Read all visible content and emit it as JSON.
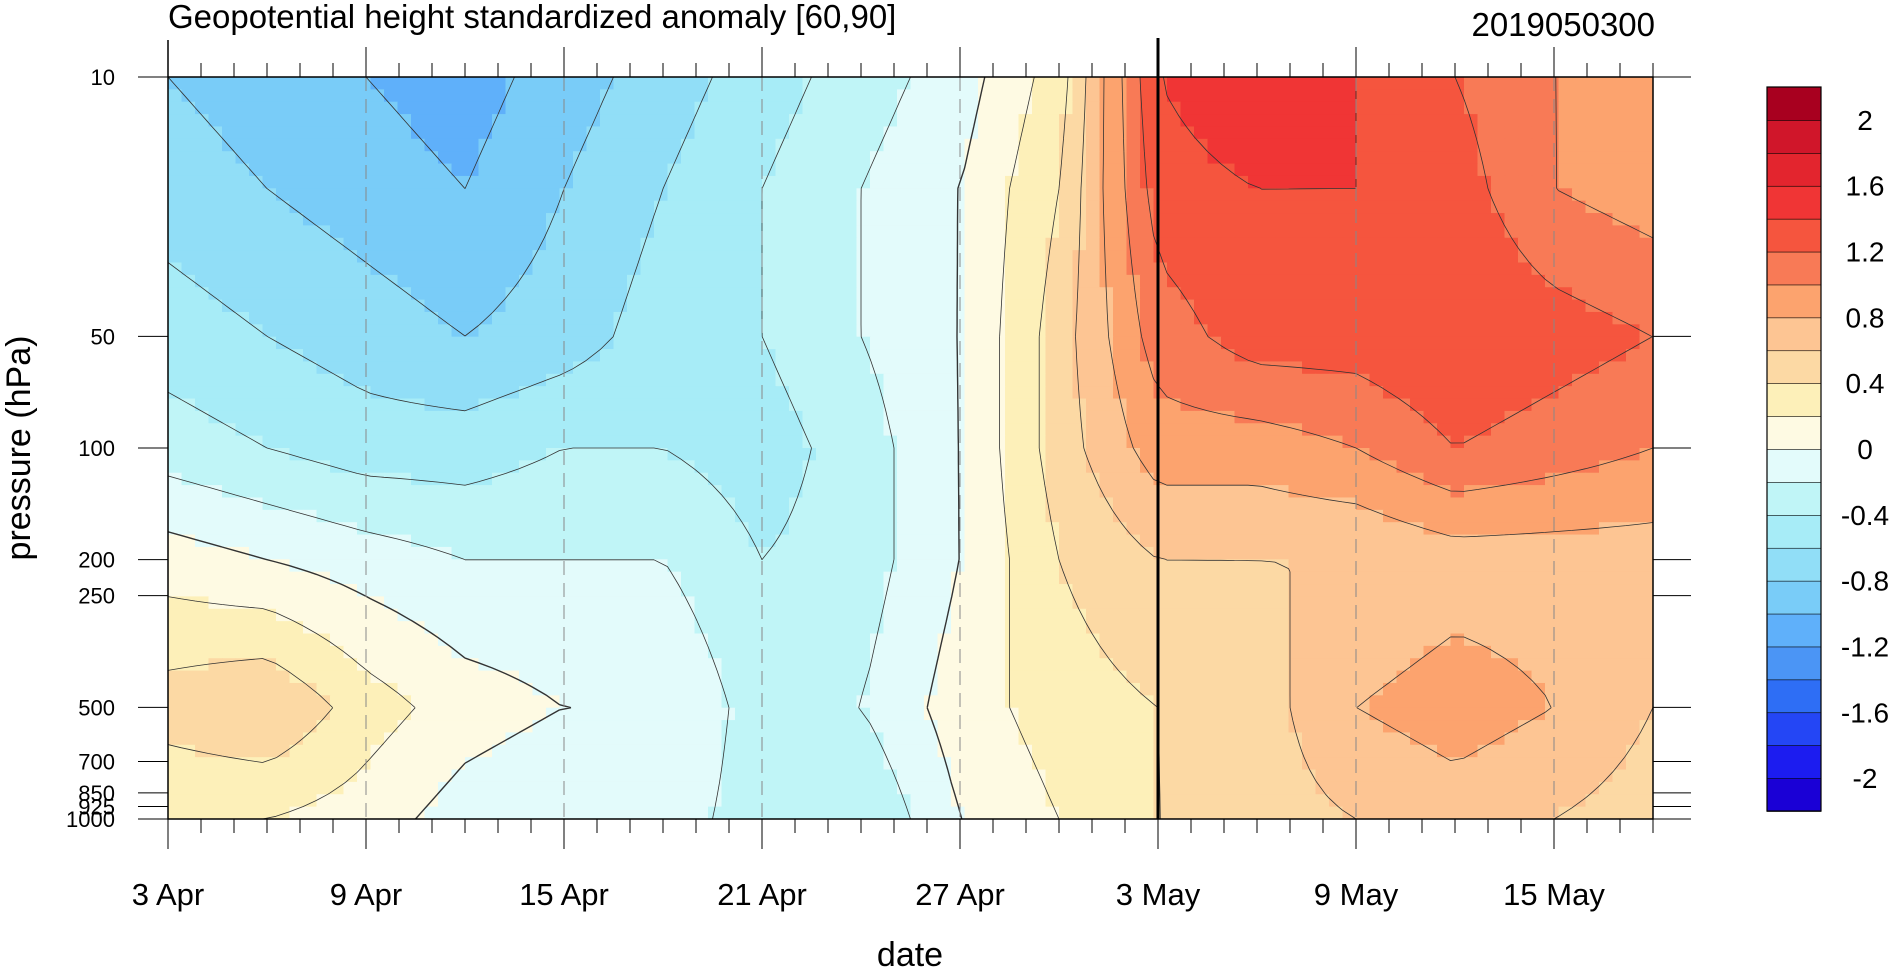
{
  "chart_data": {
    "type": "heatmap",
    "title": "Geopotential height standardized anomaly [60,90]",
    "date_label": "2019050300",
    "xlabel": "date",
    "ylabel": "pressure (hPa)",
    "x_tick_labels": [
      "3 Apr",
      "9 Apr",
      "15 Apr",
      "21 Apr",
      "27 Apr",
      "3 May",
      "9 May",
      "15 May"
    ],
    "x_range_days": [
      0,
      45
    ],
    "y_ticks": [
      {
        "value": 10,
        "label": "10"
      },
      {
        "value": 50,
        "label": "50"
      },
      {
        "value": 100,
        "label": "100"
      },
      {
        "value": 200,
        "label": "200"
      },
      {
        "value": 250,
        "label": "250"
      },
      {
        "value": 500,
        "label": "500"
      },
      {
        "value": 700,
        "label": "700"
      },
      {
        "value": 850,
        "label": "850"
      },
      {
        "value": 925,
        "label": "925"
      },
      {
        "value": 1000,
        "label": "1000"
      }
    ],
    "y_scale": "log",
    "y_reversed": true,
    "analysis_day": 30,
    "levels": [
      -2.2,
      -2.0,
      -1.8,
      -1.6,
      -1.4,
      -1.2,
      -1.0,
      -0.8,
      -0.6,
      -0.4,
      -0.2,
      0,
      0.2,
      0.4,
      0.6,
      0.8,
      1.0,
      1.2,
      1.4,
      1.6,
      1.8,
      2.0,
      2.2
    ],
    "colorbar_labels": [
      {
        "value": 2,
        "label": "2"
      },
      {
        "value": 1.6,
        "label": "1.6"
      },
      {
        "value": 1.2,
        "label": "1.2"
      },
      {
        "value": 0.8,
        "label": "0.8"
      },
      {
        "value": 0.4,
        "label": "0.4"
      },
      {
        "value": 0,
        "label": "0"
      },
      {
        "value": -0.4,
        "label": "-0.4"
      },
      {
        "value": -0.8,
        "label": "-0.8"
      },
      {
        "value": -1.2,
        "label": "-1.2"
      },
      {
        "value": -1.6,
        "label": "-1.6"
      },
      {
        "value": -2,
        "label": "-2"
      }
    ],
    "colorbar_colors": [
      "#1a00d6",
      "#1c1cf0",
      "#2446f5",
      "#2e6ef5",
      "#4b95f5",
      "#5fb0fa",
      "#79ccf8",
      "#91def7",
      "#a7ecf7",
      "#c0f5f7",
      "#e3fbfb",
      "#fefae3",
      "#fdf0b9",
      "#fcd9a4",
      "#fdc593",
      "#fca36e",
      "#f87a56",
      "#f5553e",
      "#f03535",
      "#e3252e",
      "#d0162a",
      "#a8001f"
    ],
    "grid_days": [
      0,
      3,
      6,
      9,
      12,
      15,
      18,
      21,
      24,
      27,
      30,
      33,
      36,
      39,
      42,
      45
    ],
    "grid_pressures": [
      10,
      20,
      50,
      100,
      200,
      500,
      1000
    ],
    "values": [
      [
        -0.8,
        -0.9,
        -1.0,
        -1.1,
        -0.9,
        -0.7,
        -0.5,
        -0.3,
        -0.1,
        0.3,
        1.4,
        1.6,
        1.4,
        1.2,
        1.0,
        0.9
      ],
      [
        -0.7,
        -0.8,
        -0.9,
        -1.0,
        -0.8,
        -0.6,
        -0.4,
        -0.2,
        0.0,
        0.4,
        1.3,
        1.4,
        1.4,
        1.3,
        1.0,
        0.9
      ],
      [
        -0.5,
        -0.6,
        -0.7,
        -0.8,
        -0.7,
        -0.5,
        -0.4,
        -0.2,
        0.0,
        0.5,
        1.1,
        1.3,
        1.3,
        1.4,
        1.3,
        1.2
      ],
      [
        -0.3,
        -0.4,
        -0.5,
        -0.5,
        -0.4,
        -0.4,
        -0.5,
        -0.3,
        0.0,
        0.5,
        0.9,
        0.9,
        1.0,
        1.2,
        1.1,
        1.0
      ],
      [
        0.1,
        0.0,
        -0.1,
        -0.2,
        -0.2,
        -0.2,
        -0.4,
        -0.3,
        0.0,
        0.4,
        0.6,
        0.6,
        0.6,
        0.7,
        0.7,
        0.7
      ],
      [
        0.5,
        0.6,
        0.3,
        0.1,
        0.0,
        0.0,
        -0.3,
        -0.2,
        0.1,
        0.3,
        0.4,
        0.5,
        0.8,
        0.9,
        0.8,
        0.6
      ],
      [
        0.2,
        0.2,
        0.1,
        -0.1,
        -0.2,
        -0.1,
        -0.3,
        -0.4,
        0.0,
        0.2,
        0.4,
        0.5,
        0.6,
        0.7,
        0.6,
        0.5
      ]
    ]
  }
}
